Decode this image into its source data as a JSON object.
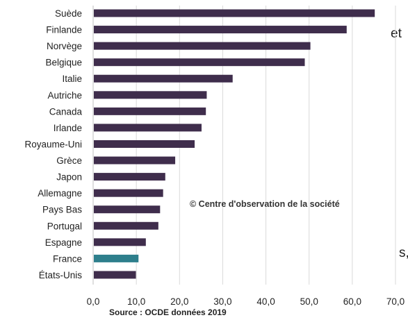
{
  "fragments": {
    "top": "et",
    "bottom": "s,"
  },
  "chart_data": {
    "type": "bar",
    "orientation": "horizontal",
    "categories": [
      "Suède",
      "Finlande",
      "Norvège",
      "Belgique",
      "Italie",
      "Autriche",
      "Canada",
      "Irlande",
      "Royaume-Uni",
      "Grèce",
      "Japon",
      "Allemagne",
      "Pays Bas",
      "Portugal",
      "Espagne",
      "France",
      "États-Unis"
    ],
    "values": [
      65.2,
      58.7,
      50.3,
      49.0,
      32.3,
      26.3,
      26.1,
      25.1,
      23.5,
      19.0,
      16.7,
      16.2,
      15.5,
      15.1,
      12.2,
      10.5,
      9.9
    ],
    "highlight_index": 15,
    "bar_color": "#3f2d4c",
    "highlight_color": "#2e7f8c",
    "xlim": [
      0,
      70
    ],
    "xticks": [
      "0,0",
      "10,0",
      "20,0",
      "30,0",
      "40,0",
      "50,0",
      "60,0",
      "70,0"
    ],
    "grid": true,
    "source": "Source : OCDE données 2019",
    "watermark": "© Centre d'observation de la société"
  }
}
